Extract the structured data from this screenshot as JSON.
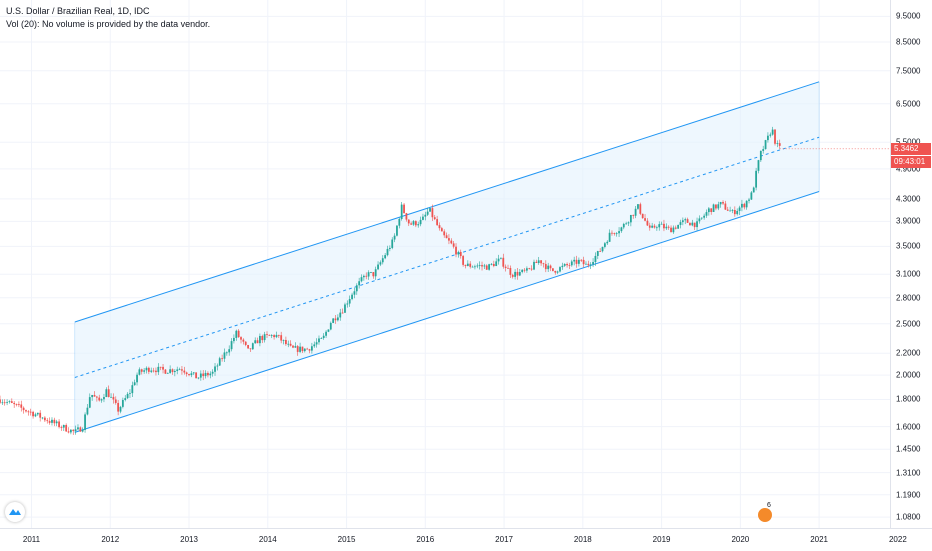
{
  "legend": {
    "title": "U.S. Dollar / Brazilian Real, 1D, IDC",
    "volume_note": "Vol (20): No volume is provided by the data vendor."
  },
  "price_labels": {
    "last_price": "5.3462",
    "countdown": "09:43:01"
  },
  "avatar_badge": "6",
  "colors": {
    "up": "#26a69a",
    "down": "#ef5350",
    "channel": "#2196f3",
    "channel_fill": "#e3f2fd"
  },
  "chart_data": {
    "type": "candlestick",
    "scale": "log",
    "ylim": [
      1.03,
      10.2
    ],
    "xlim": [
      2010.6,
      2021.9
    ],
    "y_ticks": [
      "9.5000",
      "8.5000",
      "7.5000",
      "6.5000",
      "5.5000",
      "4.9000",
      "4.3000",
      "3.9000",
      "3.5000",
      "3.1000",
      "2.8000",
      "2.5000",
      "2.2000",
      "2.0000",
      "1.8000",
      "1.6000",
      "1.4500",
      "1.3100",
      "1.1900",
      "1.0800"
    ],
    "x_ticks": [
      "2011",
      "2012",
      "2013",
      "2014",
      "2015",
      "2016",
      "2017",
      "2018",
      "2019",
      "2020",
      "2021",
      "2022"
    ],
    "price_series": [
      [
        2010.6,
        1.8
      ],
      [
        2011.0,
        1.7
      ],
      [
        2011.3,
        1.62
      ],
      [
        2011.55,
        1.56
      ],
      [
        2011.65,
        1.6
      ],
      [
        2011.75,
        1.85
      ],
      [
        2011.85,
        1.78
      ],
      [
        2011.95,
        1.87
      ],
      [
        2012.1,
        1.72
      ],
      [
        2012.25,
        1.86
      ],
      [
        2012.35,
        2.02
      ],
      [
        2012.5,
        2.06
      ],
      [
        2012.7,
        2.04
      ],
      [
        2012.9,
        2.06
      ],
      [
        2013.1,
        1.98
      ],
      [
        2013.3,
        2.02
      ],
      [
        2013.5,
        2.25
      ],
      [
        2013.6,
        2.4
      ],
      [
        2013.75,
        2.22
      ],
      [
        2013.9,
        2.35
      ],
      [
        2014.1,
        2.38
      ],
      [
        2014.3,
        2.24
      ],
      [
        2014.5,
        2.24
      ],
      [
        2014.7,
        2.34
      ],
      [
        2014.8,
        2.52
      ],
      [
        2014.95,
        2.66
      ],
      [
        2015.1,
        2.9
      ],
      [
        2015.25,
        3.1
      ],
      [
        2015.35,
        3.1
      ],
      [
        2015.5,
        3.4
      ],
      [
        2015.6,
        3.6
      ],
      [
        2015.7,
        4.15
      ],
      [
        2015.8,
        3.85
      ],
      [
        2015.95,
        3.9
      ],
      [
        2016.05,
        4.1
      ],
      [
        2016.2,
        3.7
      ],
      [
        2016.35,
        3.5
      ],
      [
        2016.5,
        3.22
      ],
      [
        2016.65,
        3.22
      ],
      [
        2016.8,
        3.2
      ],
      [
        2016.95,
        3.3
      ],
      [
        2017.1,
        3.1
      ],
      [
        2017.3,
        3.14
      ],
      [
        2017.45,
        3.3
      ],
      [
        2017.6,
        3.14
      ],
      [
        2017.75,
        3.2
      ],
      [
        2017.95,
        3.28
      ],
      [
        2018.05,
        3.22
      ],
      [
        2018.2,
        3.4
      ],
      [
        2018.35,
        3.7
      ],
      [
        2018.5,
        3.8
      ],
      [
        2018.7,
        4.15
      ],
      [
        2018.85,
        3.75
      ],
      [
        2018.95,
        3.85
      ],
      [
        2019.1,
        3.76
      ],
      [
        2019.3,
        3.9
      ],
      [
        2019.45,
        3.85
      ],
      [
        2019.6,
        4.1
      ],
      [
        2019.75,
        4.2
      ],
      [
        2019.9,
        4.05
      ],
      [
        2020.05,
        4.2
      ],
      [
        2020.15,
        4.4
      ],
      [
        2020.25,
        5.2
      ],
      [
        2020.35,
        5.6
      ],
      [
        2020.4,
        5.85
      ],
      [
        2020.45,
        5.45
      ],
      [
        2020.5,
        5.35
      ]
    ],
    "channel": {
      "x_start": 2011.55,
      "x_end": 2021.0,
      "upper": [
        2.52,
        7.15
      ],
      "middle": [
        1.98,
        5.62
      ],
      "lower": [
        1.56,
        4.44
      ]
    },
    "last_price": 5.3462
  }
}
